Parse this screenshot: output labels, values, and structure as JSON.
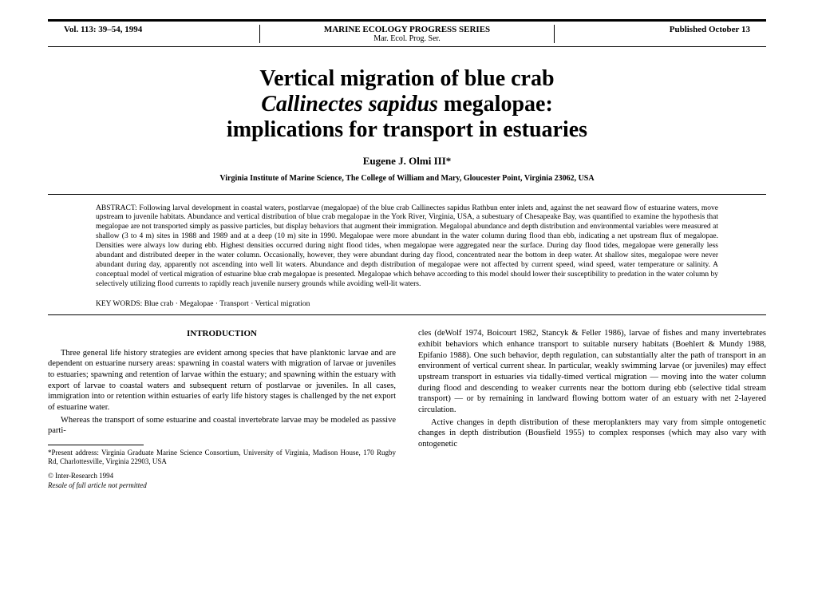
{
  "header": {
    "volume": "Vol. 113: 39–54, 1994",
    "journal": "MARINE ECOLOGY PROGRESS SERIES",
    "journal_abbrev": "Mar. Ecol. Prog. Ser.",
    "published": "Published October 13"
  },
  "title": {
    "line1": "Vertical migration of blue crab",
    "species": "Callinectes sapidus",
    "line2_rest": " megalopae:",
    "line3": "implications for transport in estuaries"
  },
  "author": "Eugene J. Olmi III*",
  "affiliation": "Virginia Institute of Marine Science, The College of William and Mary, Gloucester Point, Virginia 23062, USA",
  "abstract": {
    "label": "ABSTRACT:",
    "text": " Following larval development in coastal waters, postlarvae (megalopae) of the blue crab Callinectes sapidus Rathbun enter inlets and, against the net seaward flow of estuarine waters, move upstream to juvenile habitats. Abundance and vertical distribution of blue crab megalopae in the York River, Virginia, USA, a subestuary of Chesapeake Bay, was quantified to examine the hypothesis that megalopae are not transported simply as passive particles, but display behaviors that augment their immigration. Megalopal abundance and depth distribution and environmental variables were measured at shallow (3 to 4 m) sites in 1988 and 1989 and at a deep (10 m) site in 1990. Megalopae were more abundant in the water column during flood than ebb, indicating a net upstream flux of megalopae. Densities were always low during ebb. Highest densities occurred during night flood tides, when megalopae were aggregated near the surface. During day flood tides, megalopae were generally less abundant and distributed deeper in the water column. Occasionally, however, they were abundant during day flood, concentrated near the bottom in deep water. At shallow sites, megalopae were never abundant during day, apparently not ascending into well lit waters. Abundance and depth distribution of megalopae were not affected by current speed, wind speed, water temperature or salinity. A conceptual model of vertical migration of estuarine blue crab megalopae is presented. Megalopae which behave according to this model should lower their susceptibility to predation in the water column by selectively utilizing flood currents to rapidly reach juvenile nursery grounds while avoiding well-lit waters."
  },
  "keywords": {
    "label": "KEY WORDS:",
    "text": "  Blue crab · Megalopae · Transport · Vertical migration"
  },
  "introduction": {
    "heading": "INTRODUCTION",
    "para1": "Three general life history strategies are evident among species that have planktonic larvae and are dependent on estuarine nursery areas: spawning in coastal waters with migration of larvae or juveniles to estuaries; spawning and retention of larvae within the estuary; and spawning within the estuary with export of larvae to coastal waters and subsequent return of postlarvae or juveniles. In all cases, immigration into or retention within estuaries of early life history stages is challenged by the net export of estuarine water.",
    "para2": "Whereas the transport of some estuarine and coastal invertebrate larvae may be modeled as passive parti-"
  },
  "column2": {
    "para1": "cles (deWolf 1974, Boicourt 1982, Stancyk & Feller 1986), larvae of fishes and many invertebrates exhibit behaviors which enhance transport to suitable nursery habitats (Boehlert & Mundy 1988, Epifanio 1988). One such behavior, depth regulation, can substantially alter the path of transport in an environment of vertical current shear. In particular, weakly swimming larvae (or juveniles) may effect upstream transport in estuaries via tidally-timed vertical migration — moving into the water column during flood and descending to weaker currents near the bottom during ebb (selective tidal stream transport) — or by remaining in landward flowing bottom water of an estuary with net 2-layered circulation.",
    "para2": "Active changes in depth distribution of these meroplankters may vary from simple ontogenetic changes in depth distribution (Bousfield 1955) to complex responses (which may also vary with ontogenetic"
  },
  "footnote": {
    "text": "*Present address: Virginia Graduate Marine Science Consortium, University of Virginia, Madison House, 170 Rugby Rd, Charlottesville, Virginia 22903, USA"
  },
  "copyright": "© Inter-Research 1994",
  "resale": "Resale of full article not permitted",
  "colors": {
    "text": "#000000",
    "background": "#ffffff",
    "rule": "#000000"
  },
  "typography": {
    "title_fontsize": 28,
    "author_fontsize": 13,
    "body_fontsize": 10.5,
    "abstract_fontsize": 9.5,
    "footnote_fontsize": 9
  }
}
